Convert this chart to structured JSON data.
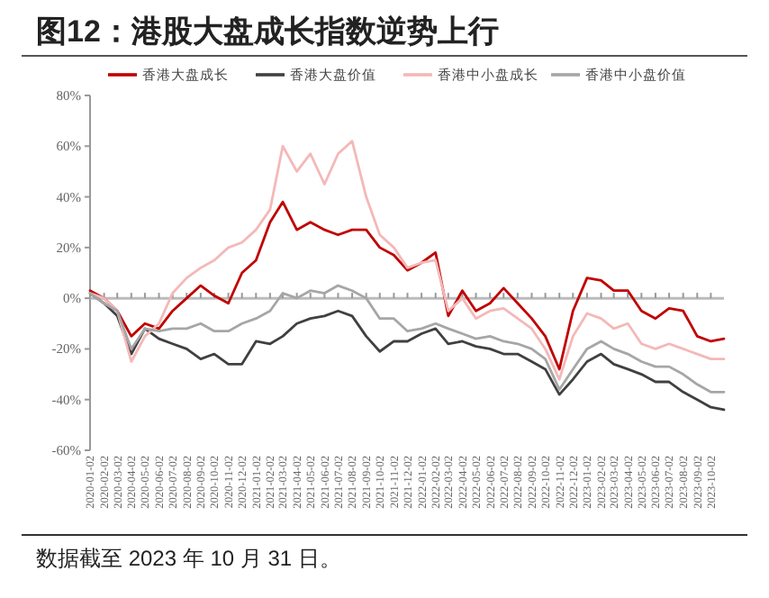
{
  "chart_data": {
    "type": "line",
    "title": "图12：港股大盘成长指数逆势上行",
    "annotations": [
      "数据截至 2023 年 10 月 31 日。"
    ],
    "x": [
      "2020-01-02",
      "2020-02-02",
      "2020-03-02",
      "2020-04-02",
      "2020-05-02",
      "2020-06-02",
      "2020-07-02",
      "2020-08-02",
      "2020-09-02",
      "2020-10-02",
      "2020-11-02",
      "2020-12-02",
      "2021-01-02",
      "2021-02-02",
      "2021-03-02",
      "2021-04-02",
      "2021-05-02",
      "2021-06-02",
      "2021-07-02",
      "2021-08-02",
      "2021-09-02",
      "2021-10-02",
      "2021-11-02",
      "2021-12-02",
      "2022-01-02",
      "2022-02-02",
      "2022-03-02",
      "2022-04-02",
      "2022-05-02",
      "2022-06-02",
      "2022-07-02",
      "2022-08-02",
      "2022-09-02",
      "2022-10-02",
      "2022-11-02",
      "2022-12-02",
      "2023-01-02",
      "2023-02-02",
      "2023-03-02",
      "2023-04-02",
      "2023-05-02",
      "2023-06-02",
      "2023-07-02",
      "2023-08-02",
      "2023-09-02",
      "2023-10-02",
      "2023-10-31"
    ],
    "series": [
      {
        "name": "香港大盘成长",
        "color": "#c00000",
        "values": [
          3,
          0,
          -5,
          -15,
          -10,
          -12,
          -5,
          0,
          5,
          1,
          -2,
          10,
          15,
          30,
          38,
          27,
          30,
          27,
          25,
          27,
          27,
          20,
          17,
          11,
          14,
          18,
          -7,
          3,
          -5,
          -2,
          4,
          -2,
          -8,
          -15,
          -28,
          -5,
          8,
          7,
          3,
          3,
          -5,
          -8,
          -4,
          -5,
          -15,
          -17,
          -16
        ]
      },
      {
        "name": "香港大盘价值",
        "color": "#404040",
        "values": [
          2,
          -2,
          -7,
          -22,
          -12,
          -16,
          -18,
          -20,
          -24,
          -22,
          -26,
          -26,
          -17,
          -18,
          -15,
          -10,
          -8,
          -7,
          -5,
          -7,
          -15,
          -21,
          -17,
          -17,
          -14,
          -12,
          -18,
          -17,
          -19,
          -20,
          -22,
          -22,
          -25,
          -28,
          -38,
          -32,
          -25,
          -22,
          -26,
          -28,
          -30,
          -33,
          -33,
          -37,
          -40,
          -43,
          -44
        ]
      },
      {
        "name": "香港中小盘成长",
        "color": "#f4b8b8",
        "values": [
          2,
          0,
          -5,
          -25,
          -15,
          -10,
          2,
          8,
          12,
          15,
          20,
          22,
          27,
          35,
          60,
          50,
          57,
          45,
          57,
          62,
          40,
          25,
          20,
          12,
          14,
          15,
          -5,
          0,
          -8,
          -5,
          -4,
          -8,
          -12,
          -20,
          -32,
          -15,
          -6,
          -8,
          -12,
          -10,
          -18,
          -20,
          -18,
          -20,
          -22,
          -24,
          -24
        ]
      },
      {
        "name": "香港中小盘价值",
        "color": "#a6a6a6",
        "values": [
          2,
          -2,
          -5,
          -20,
          -12,
          -13,
          -12,
          -12,
          -10,
          -13,
          -13,
          -10,
          -8,
          -5,
          2,
          0,
          3,
          2,
          5,
          3,
          0,
          -8,
          -8,
          -13,
          -12,
          -10,
          -12,
          -14,
          -16,
          -15,
          -17,
          -18,
          -20,
          -24,
          -36,
          -28,
          -20,
          -17,
          -20,
          -22,
          -25,
          -27,
          -27,
          -30,
          -34,
          -37,
          -37
        ]
      }
    ],
    "xlim": [
      "2020-01-02",
      "2023-10-31"
    ],
    "xticks": [
      "2020-01-02",
      "2020-02-02",
      "2020-03-02",
      "2020-04-02",
      "2020-05-02",
      "2020-06-02",
      "2020-07-02",
      "2020-08-02",
      "2020-09-02",
      "2020-10-02",
      "2020-11-02",
      "2020-12-02",
      "2021-01-02",
      "2021-02-02",
      "2021-03-02",
      "2021-04-02",
      "2021-05-02",
      "2021-06-02",
      "2021-07-02",
      "2021-08-02",
      "2021-09-02",
      "2021-10-02",
      "2021-11-02",
      "2021-12-02",
      "2022-01-02",
      "2022-02-02",
      "2022-03-02",
      "2022-04-02",
      "2022-05-02",
      "2022-06-02",
      "2022-07-02",
      "2022-08-02",
      "2022-09-02",
      "2022-10-02",
      "2022-11-02",
      "2022-12-02",
      "2023-01-02",
      "2023-02-02",
      "2023-03-02",
      "2023-04-02",
      "2023-05-02",
      "2023-06-02",
      "2023-07-02",
      "2023-08-02",
      "2023-09-02",
      "2023-10-02"
    ],
    "ylim": [
      -60,
      80
    ],
    "yticks": [
      {
        "value": -60,
        "label": "-60%"
      },
      {
        "value": -40,
        "label": "-40%"
      },
      {
        "value": -20,
        "label": "-20%"
      },
      {
        "value": 0,
        "label": "0%"
      },
      {
        "value": 20,
        "label": "20%"
      },
      {
        "value": 40,
        "label": "40%"
      },
      {
        "value": 60,
        "label": "60%"
      },
      {
        "value": 80,
        "label": "80%"
      }
    ],
    "ref_lines": [
      {
        "axis": "y",
        "value": 0,
        "color": "#bbbbbb"
      }
    ],
    "legend": "top",
    "marker": "none",
    "line_style": "solid"
  }
}
